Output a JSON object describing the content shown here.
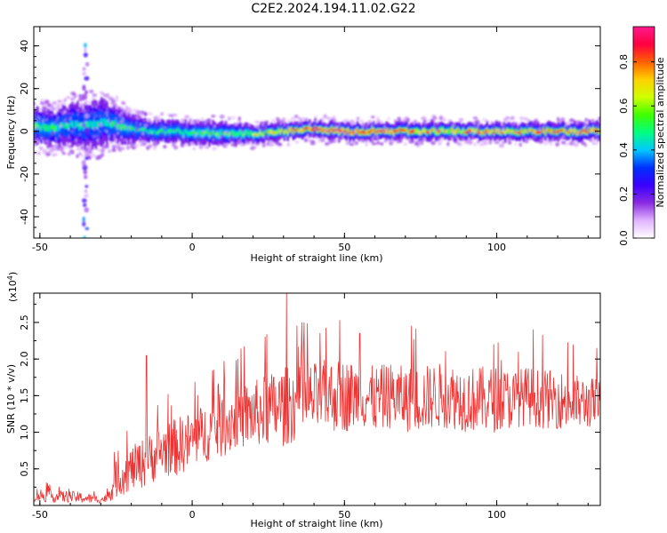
{
  "title": "C2E2.2024.194.11.02.G22",
  "chart_data": [
    {
      "type": "heatmap",
      "xlabel": "Height of straight line (km)",
      "ylabel": "Frequency (Hz)",
      "xlim": [
        -52,
        134
      ],
      "ylim": [
        -50,
        49
      ],
      "x_ticks": [
        -50,
        0,
        50,
        100
      ],
      "y_ticks": [
        -40,
        -20,
        0,
        20,
        40
      ],
      "colorbar": {
        "label": "Normalized spectral amplitude",
        "range": [
          0.0,
          0.96
        ],
        "ticks": [
          "0.0",
          "0.2",
          "0.4",
          "0.6",
          "0.8"
        ],
        "colormap": [
          "#ffffff",
          "#e0b3ff",
          "#8a2be2",
          "#3a00ff",
          "#0030ff",
          "#00c8ff",
          "#00ff80",
          "#40ff00",
          "#d0ff00",
          "#ffd000",
          "#ff6000",
          "#ff0040",
          "#ff1a8c"
        ]
      },
      "ridge": {
        "x": [
          -52,
          -45,
          -40,
          -35,
          -30,
          -25,
          -20,
          -15,
          -10,
          -5,
          0,
          5,
          10,
          20,
          30,
          40,
          50,
          60,
          70,
          80,
          90,
          100,
          110,
          120,
          130,
          134
        ],
        "center_freq": [
          2,
          2,
          3,
          3,
          4,
          3,
          1,
          0,
          0,
          0,
          -1,
          -1,
          -1,
          -1,
          0,
          1,
          0,
          0,
          0,
          0,
          0,
          0,
          0,
          0,
          0,
          0
        ],
        "half_width": [
          8,
          8,
          9,
          10,
          10,
          8,
          6,
          5,
          5,
          5,
          5,
          5,
          5,
          4,
          4,
          4,
          4,
          4,
          4,
          4,
          4,
          4,
          4,
          4,
          4,
          4
        ],
        "peak_amplitude": [
          0.5,
          0.5,
          0.45,
          0.45,
          0.45,
          0.5,
          0.5,
          0.45,
          0.5,
          0.5,
          0.55,
          0.55,
          0.55,
          0.6,
          0.75,
          0.85,
          0.85,
          0.85,
          0.8,
          0.7,
          0.7,
          0.8,
          0.7,
          0.8,
          0.85,
          0.8
        ]
      },
      "spur": {
        "x": -35,
        "freq_range": [
          -50,
          49
        ]
      }
    },
    {
      "type": "line",
      "xlabel": "Height of straight line (km)",
      "ylabel": "SNR (10 * v/v)",
      "y_multiplier": "(x10",
      "y_multiplier_exponent": "4",
      "xlim": [
        -52,
        134
      ],
      "ylim": [
        0,
        2.9
      ],
      "x_ticks": [
        -50,
        0,
        50,
        100
      ],
      "y_ticks": [
        "0.5",
        "1.0",
        "1.5",
        "2.0",
        "2.5"
      ],
      "color": "#ee3333",
      "series": [
        {
          "x": [
            -52,
            -45,
            -40,
            -35,
            -30,
            -28,
            -25,
            -20,
            -15,
            -10,
            -5,
            0,
            5,
            10,
            15,
            20,
            25,
            30,
            35,
            40,
            45,
            50,
            55,
            60,
            65,
            70,
            75,
            80,
            85,
            90,
            95,
            100,
            105,
            110,
            115,
            120,
            125,
            130,
            134
          ],
          "mean": [
            0.15,
            0.12,
            0.12,
            0.1,
            0.08,
            0.1,
            0.35,
            0.5,
            0.6,
            0.75,
            0.8,
            0.9,
            1.0,
            1.1,
            1.2,
            1.25,
            1.3,
            1.35,
            1.4,
            1.45,
            1.5,
            1.5,
            1.5,
            1.45,
            1.5,
            1.45,
            1.45,
            1.5,
            1.5,
            1.45,
            1.45,
            1.45,
            1.45,
            1.5,
            1.45,
            1.45,
            1.4,
            1.4,
            1.4
          ],
          "spread": [
            0.1,
            0.08,
            0.08,
            0.07,
            0.05,
            0.06,
            0.25,
            0.3,
            0.35,
            0.35,
            0.4,
            0.4,
            0.4,
            0.45,
            0.45,
            0.45,
            0.5,
            0.55,
            0.5,
            0.5,
            0.5,
            0.5,
            0.45,
            0.45,
            0.45,
            0.45,
            0.45,
            0.45,
            0.45,
            0.45,
            0.45,
            0.45,
            0.4,
            0.4,
            0.4,
            0.4,
            0.4,
            0.35,
            0.35
          ],
          "peaks": [
            {
              "x": -15,
              "y": 2.05
            },
            {
              "x": 15,
              "y": 2.0
            },
            {
              "x": 24,
              "y": 2.3
            },
            {
              "x": 31,
              "y": 2.9
            },
            {
              "x": 36,
              "y": 2.5
            },
            {
              "x": 42,
              "y": 2.35
            },
            {
              "x": 55,
              "y": 2.35
            },
            {
              "x": 72,
              "y": 2.45
            },
            {
              "x": 99,
              "y": 2.2
            },
            {
              "x": 112,
              "y": 2.4
            }
          ]
        }
      ]
    }
  ]
}
